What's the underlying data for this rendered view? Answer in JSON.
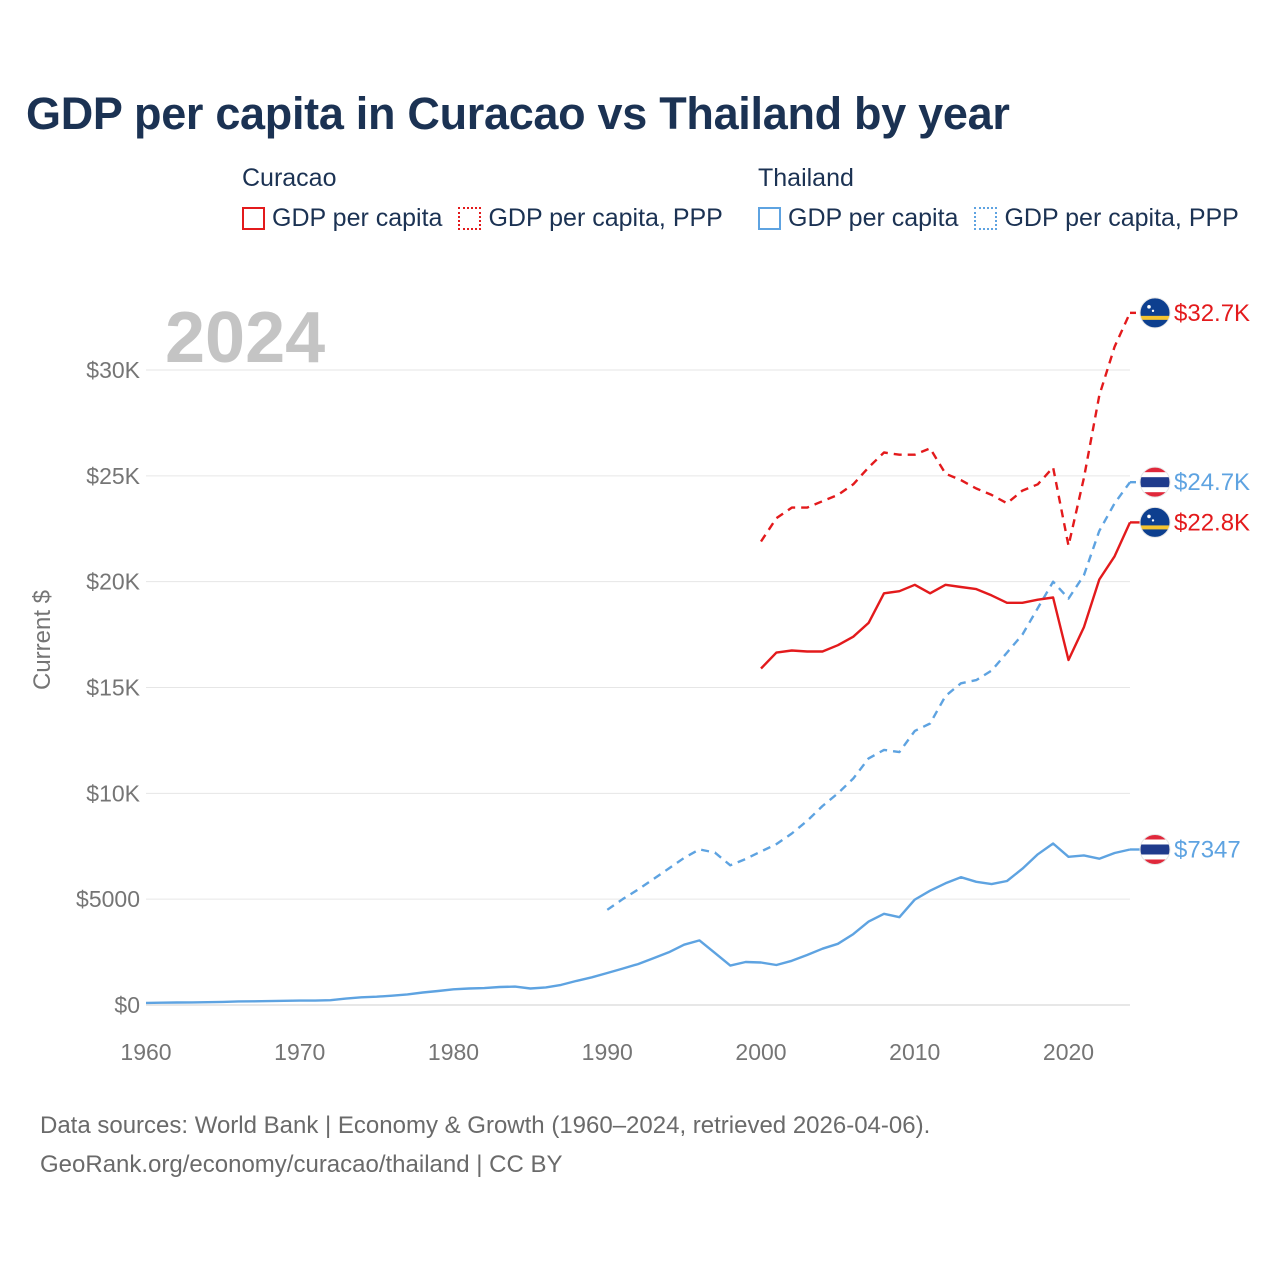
{
  "title": "GDP per capita in Curacao vs Thailand by year",
  "legend": {
    "groups": [
      {
        "country": "Curacao",
        "color": "#e31a1c",
        "items": [
          {
            "label": "GDP per capita",
            "style": "solid"
          },
          {
            "label": "GDP per capita, PPP",
            "style": "dotted"
          }
        ]
      },
      {
        "country": "Thailand",
        "color": "#5ea3e1",
        "items": [
          {
            "label": "GDP per capita",
            "style": "solid"
          },
          {
            "label": "GDP per capita, PPP",
            "style": "dotted"
          }
        ]
      }
    ]
  },
  "sources": {
    "line1": "Data sources: World Bank | Economy & Growth (1960–2024, retrieved 2026-04-06).",
    "line2": "GeoRank.org/economy/curacao/thailand | CC BY"
  },
  "chart_data": {
    "type": "line",
    "title": "GDP per capita in Curacao vs Thailand by year",
    "year_watermark": "2024",
    "xlabel": "",
    "ylabel": "Current $",
    "xlim": [
      1960,
      2024
    ],
    "ylim": [
      0,
      33000
    ],
    "x_ticks": [
      1960,
      1970,
      1980,
      1990,
      2000,
      2010,
      2020
    ],
    "y_ticks": [
      0,
      5000,
      10000,
      15000,
      20000,
      25000,
      30000
    ],
    "y_tick_labels": [
      "$0",
      "$5000",
      "$10K",
      "$15K",
      "$20K",
      "$25K",
      "$30K"
    ],
    "grid": true,
    "series": [
      {
        "name": "Curacao GDP per capita, PPP",
        "country": "Curacao",
        "color": "#e31a1c",
        "dash": "dashed",
        "end_label": "$32.7K",
        "flag": "curacao",
        "points": [
          [
            2000,
            21900
          ],
          [
            2001,
            23000
          ],
          [
            2002,
            23500
          ],
          [
            2003,
            23500
          ],
          [
            2004,
            23800
          ],
          [
            2005,
            24100
          ],
          [
            2006,
            24600
          ],
          [
            2007,
            25400
          ],
          [
            2008,
            26100
          ],
          [
            2009,
            26000
          ],
          [
            2010,
            26000
          ],
          [
            2011,
            26300
          ],
          [
            2012,
            25100
          ],
          [
            2013,
            24800
          ],
          [
            2014,
            24400
          ],
          [
            2015,
            24100
          ],
          [
            2016,
            23700
          ],
          [
            2017,
            24300
          ],
          [
            2018,
            24600
          ],
          [
            2019,
            25400
          ],
          [
            2020,
            21700
          ],
          [
            2021,
            24900
          ],
          [
            2022,
            28800
          ],
          [
            2023,
            31100
          ],
          [
            2024,
            32700
          ]
        ]
      },
      {
        "name": "Thailand GDP per capita, PPP",
        "country": "Thailand",
        "color": "#5ea3e1",
        "dash": "dashed",
        "end_label": "$24.7K",
        "flag": "thailand",
        "points": [
          [
            1990,
            4500
          ],
          [
            1991,
            5000
          ],
          [
            1992,
            5450
          ],
          [
            1993,
            5950
          ],
          [
            1994,
            6450
          ],
          [
            1995,
            6950
          ],
          [
            1996,
            7350
          ],
          [
            1997,
            7200
          ],
          [
            1998,
            6600
          ],
          [
            1999,
            6900
          ],
          [
            2000,
            7250
          ],
          [
            2001,
            7600
          ],
          [
            2002,
            8100
          ],
          [
            2003,
            8700
          ],
          [
            2004,
            9400
          ],
          [
            2005,
            10000
          ],
          [
            2006,
            10700
          ],
          [
            2007,
            11650
          ],
          [
            2008,
            12050
          ],
          [
            2009,
            11950
          ],
          [
            2010,
            12950
          ],
          [
            2011,
            13300
          ],
          [
            2012,
            14600
          ],
          [
            2013,
            15200
          ],
          [
            2014,
            15350
          ],
          [
            2015,
            15800
          ],
          [
            2016,
            16650
          ],
          [
            2017,
            17500
          ],
          [
            2018,
            18750
          ],
          [
            2019,
            20000
          ],
          [
            2020,
            19200
          ],
          [
            2021,
            20300
          ],
          [
            2022,
            22400
          ],
          [
            2023,
            23700
          ],
          [
            2024,
            24700
          ]
        ]
      },
      {
        "name": "Curacao GDP per capita",
        "country": "Curacao",
        "color": "#e31a1c",
        "dash": "solid",
        "end_label": "$22.8K",
        "flag": "curacao",
        "points": [
          [
            2000,
            15900
          ],
          [
            2001,
            16650
          ],
          [
            2002,
            16750
          ],
          [
            2003,
            16700
          ],
          [
            2004,
            16700
          ],
          [
            2005,
            17000
          ],
          [
            2006,
            17400
          ],
          [
            2007,
            18050
          ],
          [
            2008,
            19450
          ],
          [
            2009,
            19550
          ],
          [
            2010,
            19850
          ],
          [
            2011,
            19450
          ],
          [
            2012,
            19850
          ],
          [
            2013,
            19750
          ],
          [
            2014,
            19650
          ],
          [
            2015,
            19350
          ],
          [
            2016,
            19000
          ],
          [
            2017,
            19000
          ],
          [
            2018,
            19150
          ],
          [
            2019,
            19250
          ],
          [
            2020,
            16300
          ],
          [
            2021,
            17850
          ],
          [
            2022,
            20100
          ],
          [
            2023,
            21200
          ],
          [
            2024,
            22800
          ]
        ]
      },
      {
        "name": "Thailand GDP per capita",
        "country": "Thailand",
        "color": "#5ea3e1",
        "dash": "solid",
        "end_label": "$7347",
        "flag": "thailand",
        "points": [
          [
            1960,
            101
          ],
          [
            1961,
            110
          ],
          [
            1962,
            118
          ],
          [
            1963,
            125
          ],
          [
            1964,
            134
          ],
          [
            1965,
            146
          ],
          [
            1966,
            168
          ],
          [
            1967,
            176
          ],
          [
            1968,
            186
          ],
          [
            1969,
            199
          ],
          [
            1970,
            207
          ],
          [
            1971,
            208
          ],
          [
            1972,
            225
          ],
          [
            1973,
            300
          ],
          [
            1974,
            365
          ],
          [
            1975,
            390
          ],
          [
            1976,
            440
          ],
          [
            1977,
            500
          ],
          [
            1978,
            590
          ],
          [
            1979,
            660
          ],
          [
            1980,
            740
          ],
          [
            1981,
            780
          ],
          [
            1982,
            800
          ],
          [
            1983,
            850
          ],
          [
            1984,
            870
          ],
          [
            1985,
            780
          ],
          [
            1986,
            830
          ],
          [
            1987,
            950
          ],
          [
            1988,
            1140
          ],
          [
            1989,
            1310
          ],
          [
            1990,
            1510
          ],
          [
            1991,
            1720
          ],
          [
            1992,
            1930
          ],
          [
            1993,
            2210
          ],
          [
            1994,
            2490
          ],
          [
            1995,
            2850
          ],
          [
            1996,
            3050
          ],
          [
            1997,
            2460
          ],
          [
            1998,
            1860
          ],
          [
            1999,
            2030
          ],
          [
            2000,
            2010
          ],
          [
            2001,
            1890
          ],
          [
            2002,
            2090
          ],
          [
            2003,
            2360
          ],
          [
            2004,
            2660
          ],
          [
            2005,
            2890
          ],
          [
            2006,
            3350
          ],
          [
            2007,
            3940
          ],
          [
            2008,
            4310
          ],
          [
            2009,
            4150
          ],
          [
            2010,
            4980
          ],
          [
            2011,
            5400
          ],
          [
            2012,
            5750
          ],
          [
            2013,
            6040
          ],
          [
            2014,
            5820
          ],
          [
            2015,
            5710
          ],
          [
            2016,
            5860
          ],
          [
            2017,
            6440
          ],
          [
            2018,
            7120
          ],
          [
            2019,
            7630
          ],
          [
            2020,
            7000
          ],
          [
            2021,
            7070
          ],
          [
            2022,
            6910
          ],
          [
            2023,
            7180
          ],
          [
            2024,
            7347
          ]
        ]
      }
    ]
  }
}
